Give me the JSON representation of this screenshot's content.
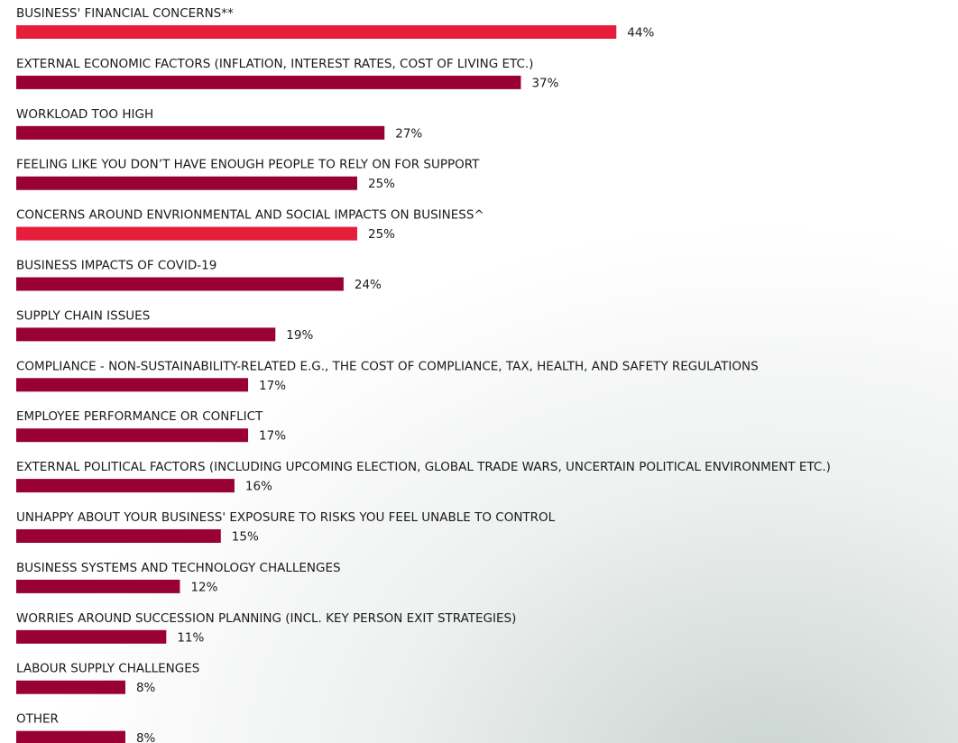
{
  "chart_data": {
    "type": "bar",
    "orientation": "horizontal",
    "categories": [
      "BUSINESS' FINANCIAL CONCERNS**",
      "EXTERNAL ECONOMIC FACTORS (INFLATION, INTEREST RATES, COST OF LIVING ETC.)",
      "WORKLOAD TOO HIGH",
      "FEELING LIKE YOU DON’T HAVE ENOUGH PEOPLE TO RELY ON FOR SUPPORT",
      "CONCERNS AROUND ENVRIONMENTAL AND SOCIAL IMPACTS ON BUSINESS^",
      "BUSINESS IMPACTS OF COVID-19",
      "SUPPLY CHAIN ISSUES",
      "COMPLIANCE - NON-SUSTAINABILITY-RELATED E.G., THE COST OF COMPLIANCE, TAX, HEALTH, AND SAFETY REGULATIONS",
      "EMPLOYEE PERFORMANCE OR CONFLICT",
      "EXTERNAL POLITICAL FACTORS (INCLUDING UPCOMING ELECTION, GLOBAL TRADE WARS, UNCERTAIN POLITICAL ENVIRONMENT ETC.)",
      "UNHAPPY ABOUT YOUR BUSINESS' EXPOSURE TO RISKS YOU FEEL UNABLE TO CONTROL",
      "BUSINESS SYSTEMS AND TECHNOLOGY CHALLENGES",
      "WORRIES AROUND SUCCESSION PLANNING (INCL. KEY PERSON EXIT STRATEGIES)",
      "LABOUR SUPPLY CHALLENGES",
      "OTHER"
    ],
    "values": [
      44,
      37,
      27,
      25,
      25,
      24,
      19,
      17,
      17,
      16,
      15,
      12,
      11,
      8,
      8
    ],
    "value_labels": [
      "44%",
      "37%",
      "27%",
      "25%",
      "25%",
      "24%",
      "19%",
      "17%",
      "17%",
      "16%",
      "15%",
      "12%",
      "11%",
      "8%",
      "8%"
    ],
    "colors": [
      "#e61e3c",
      "#990033",
      "#990033",
      "#990033",
      "#e61e3c",
      "#990033",
      "#990033",
      "#990033",
      "#990033",
      "#990033",
      "#990033",
      "#990033",
      "#990033",
      "#990033",
      "#990033"
    ]
  }
}
